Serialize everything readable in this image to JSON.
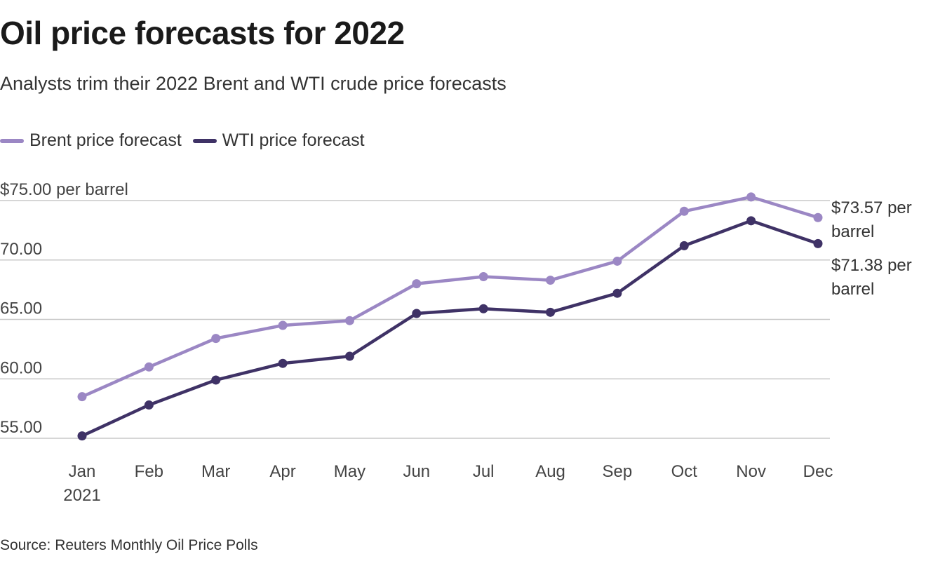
{
  "header": {
    "title": "Oil price forecasts for 2022",
    "subtitle": "Analysts trim their 2022 Brent and WTI crude price forecasts"
  },
  "footer": {
    "source": "Source: Reuters Monthly Oil Price Polls"
  },
  "colors": {
    "brent": "#9b87c4",
    "wti": "#3f3266",
    "grid": "#c8c8c8"
  },
  "chart_data": {
    "type": "line",
    "title": "Oil price forecasts for 2022",
    "xlabel": "",
    "ylabel": "",
    "x": [
      "Jan",
      "Feb",
      "Mar",
      "Apr",
      "May",
      "Jun",
      "Jul",
      "Aug",
      "Sep",
      "Oct",
      "Nov",
      "Dec"
    ],
    "x_sublabel": {
      "Jan": "2021"
    },
    "ylim": [
      55,
      75
    ],
    "yticks": [
      55,
      60,
      65,
      70,
      75
    ],
    "ytick_labels": [
      "55.00",
      "60.00",
      "65.00",
      "70.00",
      "$75.00 per barrel"
    ],
    "grid": true,
    "legend": "top-left",
    "series": [
      {
        "name": "Brent price forecast",
        "values": [
          58.5,
          61.0,
          63.4,
          64.5,
          64.9,
          68.0,
          68.6,
          68.3,
          69.9,
          74.1,
          75.3,
          73.57
        ],
        "end_label": [
          "$73.57 per",
          "barrel"
        ]
      },
      {
        "name": "WTI price forecast",
        "values": [
          55.2,
          57.8,
          59.9,
          61.3,
          61.9,
          65.5,
          65.9,
          65.6,
          67.2,
          71.2,
          73.3,
          71.38
        ],
        "end_label": [
          "$71.38 per",
          "barrel"
        ]
      }
    ]
  }
}
